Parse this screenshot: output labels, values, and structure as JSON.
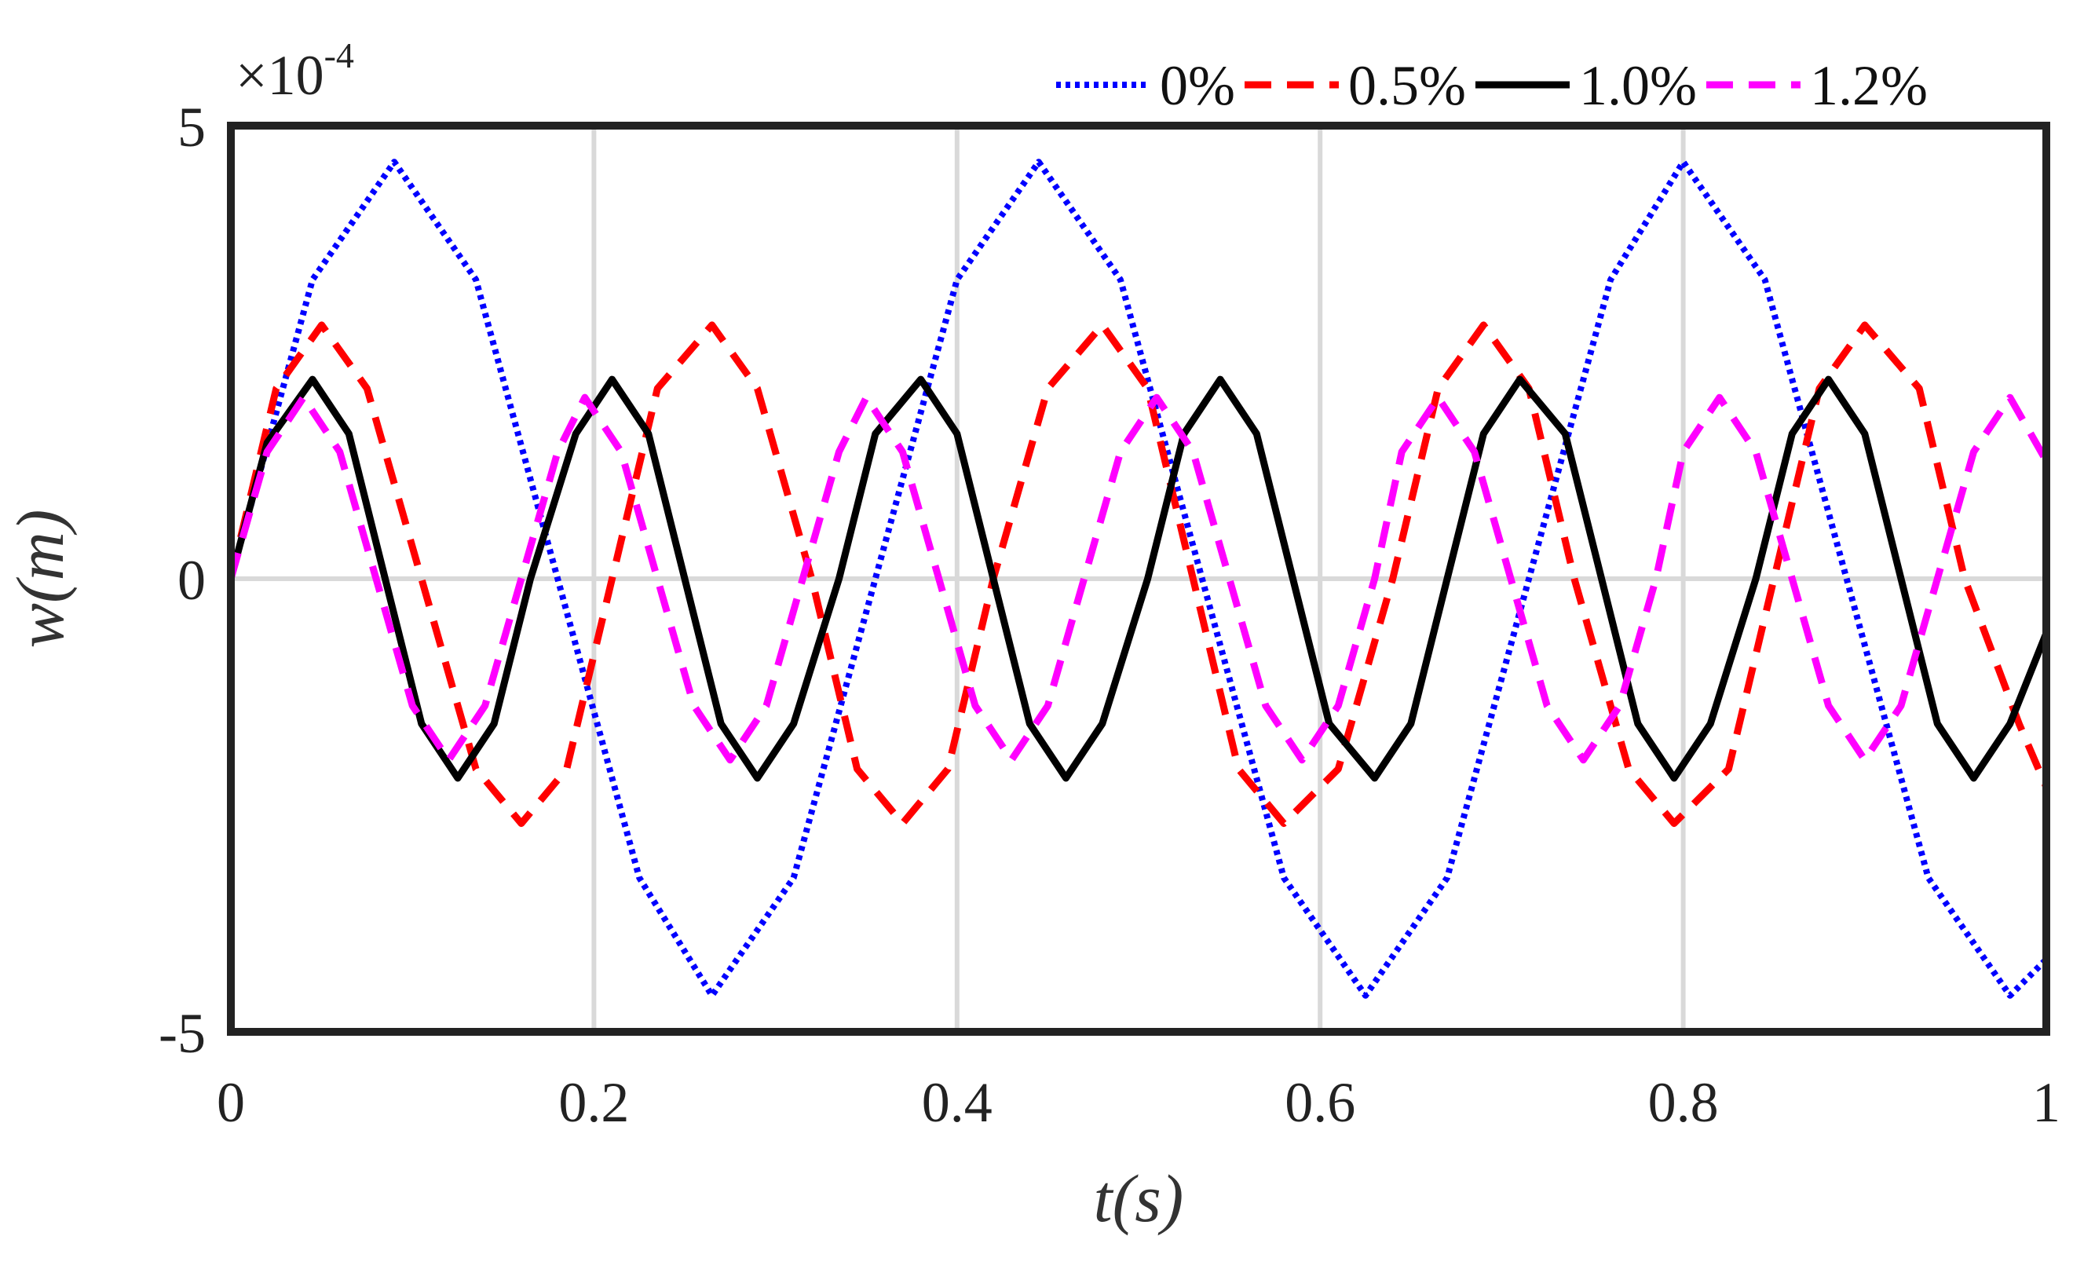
{
  "chart_data": {
    "type": "line",
    "title": "",
    "xlabel": "t(s)",
    "ylabel": "w(m)",
    "y_multiplier": {
      "base": "×10",
      "exponent": "-4"
    },
    "xlim": [
      0,
      1
    ],
    "ylim": [
      -5,
      5
    ],
    "grid": true,
    "legend_position": "top-right",
    "x_ticks": [
      "0",
      "0.2",
      "0.4",
      "0.6",
      "0.8",
      "1"
    ],
    "x_tick_values": [
      0,
      0.2,
      0.4,
      0.6,
      0.8,
      1
    ],
    "y_ticks": [
      "5",
      "0",
      "-5"
    ],
    "y_tick_values": [
      5,
      0,
      -5
    ],
    "series": [
      {
        "name": "0%",
        "color": "#0000ff",
        "style": "dotted",
        "x": [
          0,
          0.045,
          0.09,
          0.135,
          0.18,
          0.225,
          0.265,
          0.31,
          0.355,
          0.4,
          0.445,
          0.49,
          0.535,
          0.58,
          0.625,
          0.67,
          0.715,
          0.76,
          0.8,
          0.845,
          0.89,
          0.935,
          0.98,
          1.0
        ],
        "values": [
          0,
          3.3,
          4.6,
          3.3,
          0,
          -3.3,
          -4.6,
          -3.3,
          0,
          3.3,
          4.6,
          3.3,
          0,
          -3.3,
          -4.6,
          -3.3,
          0,
          3.3,
          4.6,
          3.3,
          0,
          -3.3,
          -4.6,
          -4.2
        ]
      },
      {
        "name": "0.5%",
        "color": "#ff0000",
        "style": "dashed",
        "x": [
          0,
          0.025,
          0.05,
          0.075,
          0.105,
          0.135,
          0.16,
          0.185,
          0.21,
          0.235,
          0.265,
          0.29,
          0.32,
          0.345,
          0.37,
          0.395,
          0.42,
          0.45,
          0.48,
          0.505,
          0.53,
          0.555,
          0.58,
          0.61,
          0.64,
          0.665,
          0.69,
          0.715,
          0.74,
          0.77,
          0.795,
          0.825,
          0.85,
          0.875,
          0.9,
          0.93,
          0.955,
          0.985,
          1.0
        ],
        "values": [
          0,
          2.1,
          2.8,
          2.1,
          0,
          -2.1,
          -2.7,
          -2.1,
          0,
          2.1,
          2.8,
          2.1,
          0,
          -2.1,
          -2.7,
          -2.1,
          0,
          2.1,
          2.8,
          2.1,
          0,
          -2.1,
          -2.7,
          -2.1,
          0,
          2.1,
          2.8,
          2.1,
          0,
          -2.1,
          -2.7,
          -2.1,
          0,
          2.1,
          2.8,
          2.1,
          0,
          -1.6,
          -2.3
        ]
      },
      {
        "name": "1.0%",
        "color": "#000000",
        "style": "solid",
        "x": [
          0,
          0.02,
          0.045,
          0.065,
          0.085,
          0.105,
          0.125,
          0.145,
          0.165,
          0.19,
          0.21,
          0.23,
          0.25,
          0.27,
          0.29,
          0.31,
          0.335,
          0.355,
          0.38,
          0.4,
          0.42,
          0.44,
          0.46,
          0.48,
          0.505,
          0.525,
          0.545,
          0.565,
          0.585,
          0.605,
          0.63,
          0.65,
          0.67,
          0.69,
          0.71,
          0.735,
          0.755,
          0.775,
          0.795,
          0.815,
          0.84,
          0.86,
          0.88,
          0.9,
          0.92,
          0.94,
          0.96,
          0.98,
          1.0
        ],
        "values": [
          0,
          1.5,
          2.2,
          1.6,
          0,
          -1.6,
          -2.2,
          -1.6,
          0,
          1.6,
          2.2,
          1.6,
          0,
          -1.6,
          -2.2,
          -1.6,
          0,
          1.6,
          2.2,
          1.6,
          0,
          -1.6,
          -2.2,
          -1.6,
          0,
          1.6,
          2.2,
          1.6,
          0,
          -1.6,
          -2.2,
          -1.6,
          0,
          1.6,
          2.2,
          1.6,
          0,
          -1.6,
          -2.2,
          -1.6,
          0,
          1.6,
          2.2,
          1.6,
          0,
          -1.6,
          -2.2,
          -1.6,
          -0.6
        ]
      },
      {
        "name": "1.2%",
        "color": "#ff00ff",
        "style": "dashed",
        "x": [
          0,
          0.02,
          0.04,
          0.06,
          0.08,
          0.1,
          0.12,
          0.14,
          0.16,
          0.18,
          0.195,
          0.215,
          0.235,
          0.255,
          0.275,
          0.295,
          0.315,
          0.335,
          0.35,
          0.37,
          0.39,
          0.41,
          0.43,
          0.45,
          0.47,
          0.49,
          0.51,
          0.53,
          0.55,
          0.57,
          0.59,
          0.61,
          0.63,
          0.645,
          0.665,
          0.685,
          0.705,
          0.725,
          0.745,
          0.765,
          0.785,
          0.8,
          0.82,
          0.84,
          0.86,
          0.88,
          0.9,
          0.92,
          0.94,
          0.96,
          0.98,
          1.0
        ],
        "values": [
          0,
          1.4,
          2.0,
          1.4,
          0,
          -1.4,
          -2.0,
          -1.4,
          0,
          1.4,
          2.0,
          1.4,
          0,
          -1.4,
          -2.0,
          -1.4,
          0,
          1.4,
          2.0,
          1.4,
          0,
          -1.4,
          -2.0,
          -1.4,
          0,
          1.4,
          2.0,
          1.4,
          0,
          -1.4,
          -2.0,
          -1.4,
          0,
          1.4,
          2.0,
          1.4,
          0,
          -1.4,
          -2.0,
          -1.4,
          0,
          1.4,
          2.0,
          1.4,
          0,
          -1.4,
          -2.0,
          -1.4,
          0,
          1.4,
          2.0,
          1.3
        ]
      }
    ]
  }
}
